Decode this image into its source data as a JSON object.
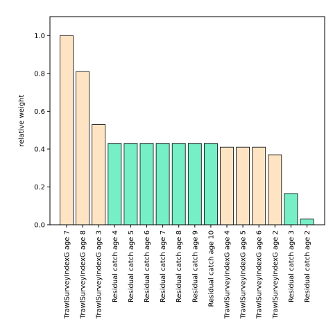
{
  "chart_data": {
    "type": "bar",
    "title": "",
    "xlabel": "",
    "ylabel": "relative weight",
    "ylim": [
      0,
      1.1
    ],
    "yticks": [
      "0.0",
      "0.2",
      "0.4",
      "0.6",
      "0.8",
      "1.0"
    ],
    "grid": false,
    "colors": {
      "survey": "#ffe4c4",
      "catch": "#76eec6",
      "edge": "#000000"
    },
    "categories": [
      "TrawlSurveyIndexG age 7",
      "TrawlSurveyIndexG age 8",
      "TrawlSurveyIndexG age 3",
      "Residual catch age 4",
      "Residual catch age 5",
      "Residual catch age 6",
      "Residual catch age 7",
      "Residual catch age 8",
      "Residual catch age 9",
      "Residual catch age 10",
      "TrawlSurveyIndexG age 4",
      "TrawlSurveyIndexG age 5",
      "TrawlSurveyIndexG age 6",
      "TrawlSurveyIndexG age 2",
      "Residual catch age 3",
      "Residual catch age 2"
    ],
    "values": [
      1.0,
      0.81,
      0.53,
      0.43,
      0.43,
      0.43,
      0.43,
      0.43,
      0.43,
      0.43,
      0.41,
      0.41,
      0.41,
      0.37,
      0.165,
      0.03
    ],
    "groups": [
      "survey",
      "survey",
      "survey",
      "catch",
      "catch",
      "catch",
      "catch",
      "catch",
      "catch",
      "catch",
      "survey",
      "survey",
      "survey",
      "survey",
      "catch",
      "catch"
    ]
  }
}
